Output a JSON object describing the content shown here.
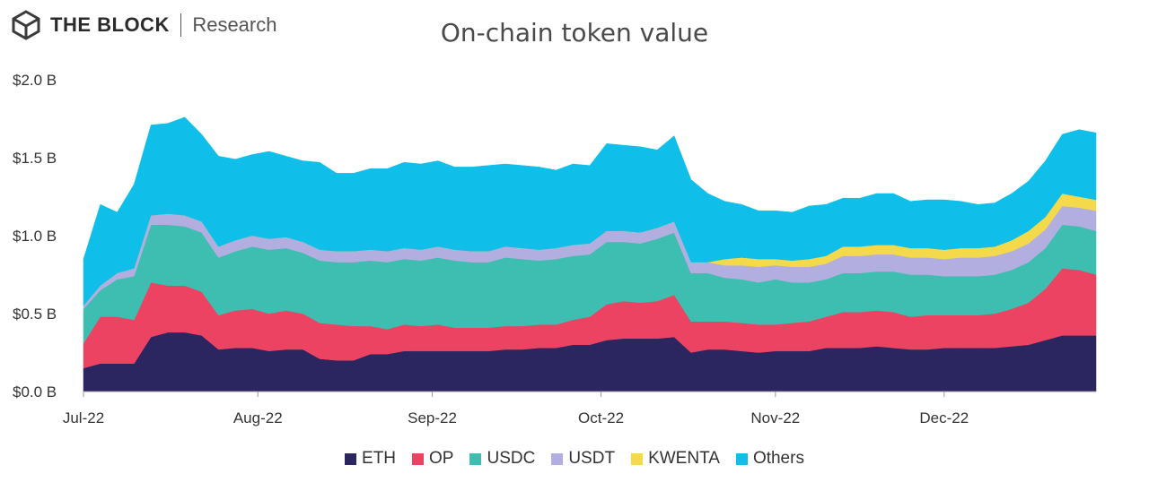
{
  "brand": {
    "name": "THE BLOCK",
    "sub": "Research"
  },
  "chart_data": {
    "type": "area",
    "stacked": true,
    "title": "On-chain token value",
    "xlabel": "",
    "ylabel": "",
    "ylim": [
      0,
      2.0
    ],
    "y_ticks": [
      0,
      0.5,
      1.0,
      1.5,
      2.0
    ],
    "y_tick_labels": [
      "$0.0 B",
      "$0.5 B",
      "$1.0 B",
      "$1.5 B",
      "$2.0 B"
    ],
    "x_ticks": [
      {
        "day": 0,
        "label": "Jul-22"
      },
      {
        "day": 31,
        "label": "Aug-22"
      },
      {
        "day": 62,
        "label": "Sep-22"
      },
      {
        "day": 92,
        "label": "Oct-22"
      },
      {
        "day": 123,
        "label": "Nov-22"
      },
      {
        "day": 153,
        "label": "Dec-22"
      }
    ],
    "x_range_days": [
      0,
      180
    ],
    "x_days": [
      0,
      3,
      6,
      9,
      12,
      15,
      18,
      21,
      24,
      27,
      30,
      33,
      36,
      39,
      42,
      45,
      48,
      51,
      54,
      57,
      60,
      63,
      66,
      69,
      72,
      75,
      78,
      81,
      84,
      87,
      90,
      93,
      96,
      99,
      102,
      105,
      108,
      111,
      114,
      117,
      120,
      123,
      126,
      129,
      132,
      135,
      138,
      141,
      144,
      147,
      150,
      153,
      156,
      159,
      162,
      165,
      168,
      171,
      174,
      177,
      180
    ],
    "series": [
      {
        "name": "ETH",
        "color": "#2b2560",
        "values": [
          0.15,
          0.18,
          0.18,
          0.18,
          0.35,
          0.38,
          0.38,
          0.36,
          0.27,
          0.28,
          0.28,
          0.26,
          0.27,
          0.27,
          0.21,
          0.2,
          0.2,
          0.24,
          0.24,
          0.26,
          0.26,
          0.26,
          0.26,
          0.26,
          0.26,
          0.27,
          0.27,
          0.28,
          0.28,
          0.3,
          0.3,
          0.33,
          0.34,
          0.34,
          0.34,
          0.35,
          0.25,
          0.27,
          0.27,
          0.26,
          0.25,
          0.26,
          0.26,
          0.26,
          0.28,
          0.28,
          0.28,
          0.29,
          0.28,
          0.27,
          0.27,
          0.28,
          0.28,
          0.28,
          0.28,
          0.29,
          0.3,
          0.33,
          0.36,
          0.36,
          0.36
        ]
      },
      {
        "name": "OP",
        "color": "#ec4363",
        "values": [
          0.16,
          0.3,
          0.3,
          0.28,
          0.35,
          0.3,
          0.3,
          0.28,
          0.22,
          0.24,
          0.25,
          0.24,
          0.25,
          0.23,
          0.23,
          0.23,
          0.22,
          0.18,
          0.16,
          0.17,
          0.16,
          0.17,
          0.15,
          0.15,
          0.15,
          0.15,
          0.15,
          0.15,
          0.15,
          0.16,
          0.18,
          0.23,
          0.24,
          0.23,
          0.24,
          0.27,
          0.2,
          0.18,
          0.18,
          0.18,
          0.18,
          0.17,
          0.18,
          0.19,
          0.2,
          0.23,
          0.23,
          0.23,
          0.23,
          0.21,
          0.22,
          0.21,
          0.21,
          0.21,
          0.22,
          0.24,
          0.27,
          0.33,
          0.43,
          0.42,
          0.39
        ]
      },
      {
        "name": "USDC",
        "color": "#3ebdb1",
        "values": [
          0.22,
          0.17,
          0.24,
          0.28,
          0.37,
          0.39,
          0.38,
          0.38,
          0.37,
          0.38,
          0.4,
          0.41,
          0.4,
          0.39,
          0.4,
          0.4,
          0.41,
          0.42,
          0.43,
          0.42,
          0.42,
          0.43,
          0.43,
          0.42,
          0.42,
          0.44,
          0.43,
          0.41,
          0.42,
          0.41,
          0.4,
          0.4,
          0.38,
          0.38,
          0.4,
          0.4,
          0.31,
          0.31,
          0.28,
          0.28,
          0.27,
          0.29,
          0.26,
          0.25,
          0.24,
          0.25,
          0.25,
          0.25,
          0.26,
          0.27,
          0.26,
          0.25,
          0.25,
          0.25,
          0.25,
          0.25,
          0.26,
          0.26,
          0.28,
          0.28,
          0.28
        ]
      },
      {
        "name": "USDT",
        "color": "#b3aee0",
        "values": [
          0.02,
          0.03,
          0.04,
          0.05,
          0.06,
          0.07,
          0.07,
          0.07,
          0.07,
          0.07,
          0.07,
          0.07,
          0.07,
          0.07,
          0.07,
          0.07,
          0.07,
          0.07,
          0.07,
          0.07,
          0.07,
          0.07,
          0.07,
          0.07,
          0.07,
          0.07,
          0.07,
          0.07,
          0.07,
          0.07,
          0.07,
          0.07,
          0.07,
          0.07,
          0.07,
          0.07,
          0.07,
          0.07,
          0.08,
          0.09,
          0.1,
          0.09,
          0.1,
          0.1,
          0.1,
          0.11,
          0.11,
          0.11,
          0.11,
          0.11,
          0.11,
          0.11,
          0.12,
          0.12,
          0.12,
          0.12,
          0.12,
          0.12,
          0.12,
          0.12,
          0.13
        ]
      },
      {
        "name": "KWENTA",
        "color": "#f4d94b",
        "values": [
          0,
          0,
          0,
          0,
          0,
          0,
          0,
          0,
          0,
          0,
          0,
          0,
          0,
          0,
          0,
          0,
          0,
          0,
          0,
          0,
          0,
          0,
          0,
          0,
          0,
          0,
          0,
          0,
          0,
          0,
          0,
          0,
          0,
          0,
          0,
          0,
          0,
          0,
          0.04,
          0.05,
          0.05,
          0.04,
          0.04,
          0.05,
          0.05,
          0.06,
          0.06,
          0.06,
          0.06,
          0.06,
          0.06,
          0.06,
          0.06,
          0.06,
          0.06,
          0.07,
          0.08,
          0.08,
          0.08,
          0.07,
          0.07
        ]
      },
      {
        "name": "Others",
        "color": "#0fbfea",
        "values": [
          0.3,
          0.52,
          0.39,
          0.54,
          0.58,
          0.58,
          0.63,
          0.56,
          0.58,
          0.52,
          0.52,
          0.56,
          0.52,
          0.52,
          0.56,
          0.5,
          0.5,
          0.52,
          0.53,
          0.55,
          0.55,
          0.55,
          0.53,
          0.54,
          0.55,
          0.53,
          0.53,
          0.53,
          0.5,
          0.52,
          0.5,
          0.56,
          0.55,
          0.55,
          0.5,
          0.55,
          0.53,
          0.44,
          0.37,
          0.34,
          0.31,
          0.31,
          0.31,
          0.34,
          0.33,
          0.31,
          0.31,
          0.33,
          0.33,
          0.3,
          0.31,
          0.32,
          0.3,
          0.28,
          0.28,
          0.3,
          0.32,
          0.36,
          0.38,
          0.43,
          0.43
        ]
      }
    ],
    "legend_position": "bottom"
  }
}
